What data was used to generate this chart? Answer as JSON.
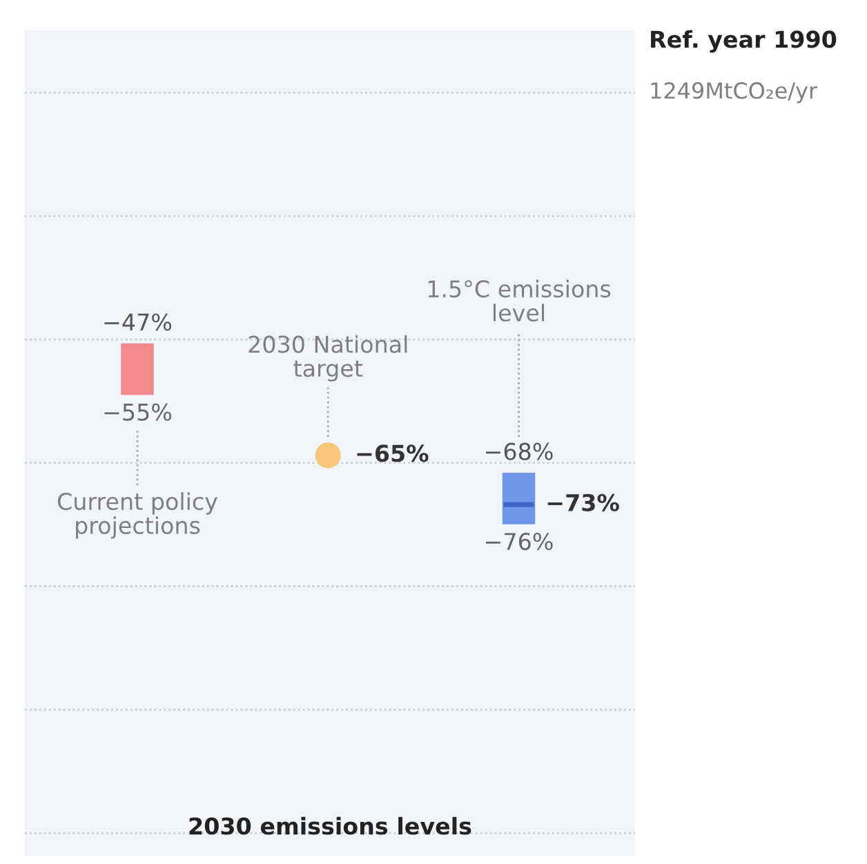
{
  "chart_data": {
    "type": "other",
    "title": "2030 emissions levels",
    "categories": [
      "Current policy projections",
      "2030 National target",
      "1.5°C emissions level"
    ],
    "series": [
      {
        "type": "bar",
        "values": [
          -47,
          null,
          -68
        ],
        "colors": [
          "#f28b8f",
          null,
          "#6f97ea"
        ],
        "value_labels": [
          "−47%",
          null,
          "−68%"
        ]
      },
      {
        "type": "scatter",
        "marker": "none",
        "values": [
          -55,
          null,
          -76
        ],
        "value_labels": [
          "−55%",
          null,
          "−76%"
        ]
      },
      {
        "type": "scatter",
        "values": [
          null,
          -65,
          null
        ],
        "color": "#f9c77b",
        "marker": "circle",
        "value_labels": [
          null,
          "−65%",
          null
        ]
      },
      {
        "type": "scatter",
        "values": [
          null,
          null,
          -73
        ],
        "color": "#3e66c4",
        "marker": "dash",
        "value_labels": [
          null,
          null,
          "−73%"
        ]
      }
    ],
    "annotations": [
      "Ref. year 1990",
      "1249MtCO₂e/yr"
    ]
  }
}
